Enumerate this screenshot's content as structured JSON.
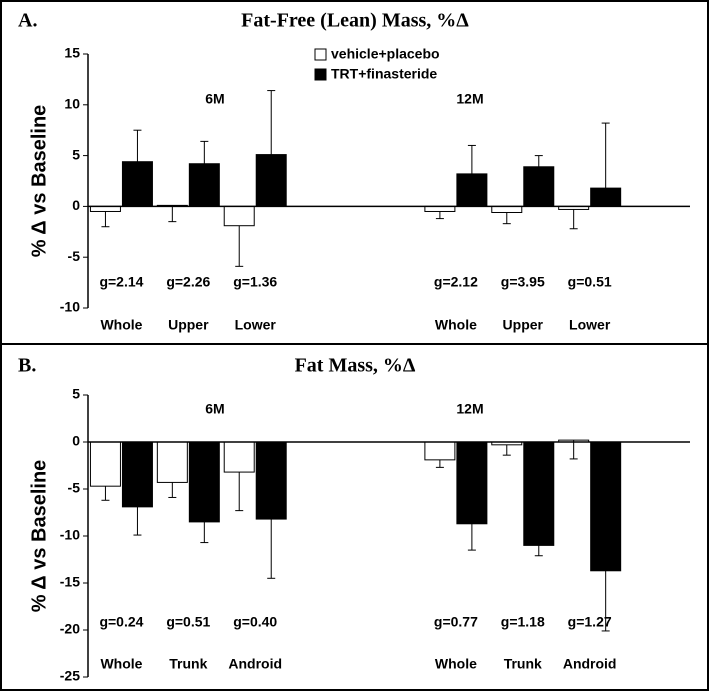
{
  "chart_data": [
    {
      "type": "bar",
      "panel_label": "A.",
      "title": "Fat-Free (Lean) Mass, %Δ",
      "ylabel": "% Δ vs Baseline",
      "categories": [
        "Whole",
        "Upper",
        "Lower",
        null,
        null,
        "Whole",
        "Upper",
        "Lower"
      ],
      "series": [
        {
          "name": "vehicle+placebo",
          "color": "#ffffff",
          "error_direction": "down",
          "values": [
            -0.5,
            0.1,
            -1.9,
            null,
            null,
            -0.5,
            -0.6,
            -0.3
          ],
          "errors": [
            1.5,
            1.6,
            4.0,
            null,
            null,
            0.7,
            1.1,
            1.9
          ]
        },
        {
          "name": "TRT+finasteride",
          "color": "#000000",
          "error_direction": "up",
          "values": [
            4.4,
            4.2,
            5.1,
            null,
            null,
            3.2,
            3.9,
            1.8
          ],
          "errors": [
            3.1,
            2.2,
            6.3,
            null,
            null,
            2.8,
            1.1,
            6.4
          ]
        }
      ],
      "g_labels": [
        "g=2.14",
        "g=2.26",
        "g=1.36",
        null,
        null,
        "g=2.12",
        "g=3.95",
        "g=0.51"
      ],
      "annotations": [
        "6M",
        "12M"
      ],
      "ylim": [
        -10,
        15
      ],
      "yticks": [
        -10,
        -5,
        0,
        5,
        10,
        15
      ]
    },
    {
      "type": "bar",
      "panel_label": "B.",
      "title": "Fat Mass, %Δ",
      "ylabel": "% Δ vs Baseline",
      "categories": [
        "Whole",
        "Trunk",
        "Android",
        null,
        null,
        "Whole",
        "Trunk",
        "Android"
      ],
      "series": [
        {
          "color": "#ffffff",
          "error_direction": "down",
          "values": [
            -4.7,
            -4.3,
            -3.2,
            null,
            null,
            -1.9,
            -0.3,
            0.2
          ],
          "errors": [
            1.5,
            1.6,
            4.1,
            null,
            null,
            0.8,
            1.1,
            2.0
          ]
        },
        {
          "color": "#000000",
          "error_direction": "down",
          "values": [
            -6.9,
            -8.5,
            -8.2,
            null,
            null,
            -8.7,
            -11.0,
            -13.7
          ],
          "errors": [
            3.0,
            2.2,
            6.3,
            null,
            null,
            2.8,
            1.1,
            6.4
          ]
        }
      ],
      "g_labels": [
        "g=0.24",
        "g=0.51",
        "g=0.40",
        null,
        null,
        "g=0.77",
        "g=1.18",
        "g=1.27"
      ],
      "annotations": [
        "6M",
        "12M"
      ],
      "ylim": [
        -25,
        5
      ],
      "yticks": [
        -25,
        -20,
        -15,
        -10,
        -5,
        0,
        5
      ]
    }
  ]
}
